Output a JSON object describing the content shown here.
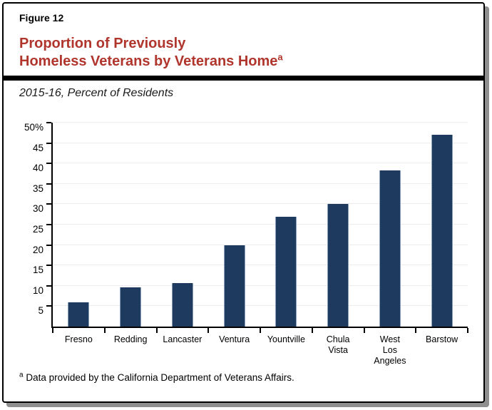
{
  "header": {
    "figure_label": "Figure 12",
    "title_line1": "Proportion of Previously",
    "title_line2": "Homeless Veterans by Veterans Home",
    "title_superscript": "a",
    "title_color": "#b0352c"
  },
  "chart_data": {
    "type": "bar",
    "title": "Proportion of Previously Homeless Veterans by Veterans Home",
    "subtitle": "2015-16, Percent of Residents",
    "xlabel": "",
    "ylabel": "",
    "categories": [
      "Fresno",
      "Redding",
      "Lancaster",
      "Ventura",
      "Yountville",
      "Chula Vista",
      "West Los Angeles",
      "Barstow"
    ],
    "category_label_lines": [
      [
        "Fresno"
      ],
      [
        "Redding"
      ],
      [
        "Lancaster"
      ],
      [
        "Ventura"
      ],
      [
        "Yountville"
      ],
      [
        "Chula",
        "Vista"
      ],
      [
        "West",
        "Los",
        "Angeles"
      ],
      [
        "Barstow"
      ]
    ],
    "values": [
      6,
      9.7,
      10.6,
      20,
      27,
      30,
      38.3,
      47
    ],
    "ylim": [
      0,
      50
    ],
    "y_ticks": [
      {
        "value": 50,
        "label": "50%"
      },
      {
        "value": 45,
        "label": "45"
      },
      {
        "value": 40,
        "label": "40"
      },
      {
        "value": 35,
        "label": "35"
      },
      {
        "value": 30,
        "label": "30"
      },
      {
        "value": 25,
        "label": "25"
      },
      {
        "value": 20,
        "label": "20"
      },
      {
        "value": 15,
        "label": "15"
      },
      {
        "value": 10,
        "label": "10"
      },
      {
        "value": 5,
        "label": "5"
      }
    ],
    "grid": true,
    "legend": "none",
    "bar_color": "#1e3a5e",
    "gridline_color": "#ececec"
  },
  "footnote": {
    "marker": "a",
    "text": "Data provided by the California Department of Veterans Affairs."
  }
}
